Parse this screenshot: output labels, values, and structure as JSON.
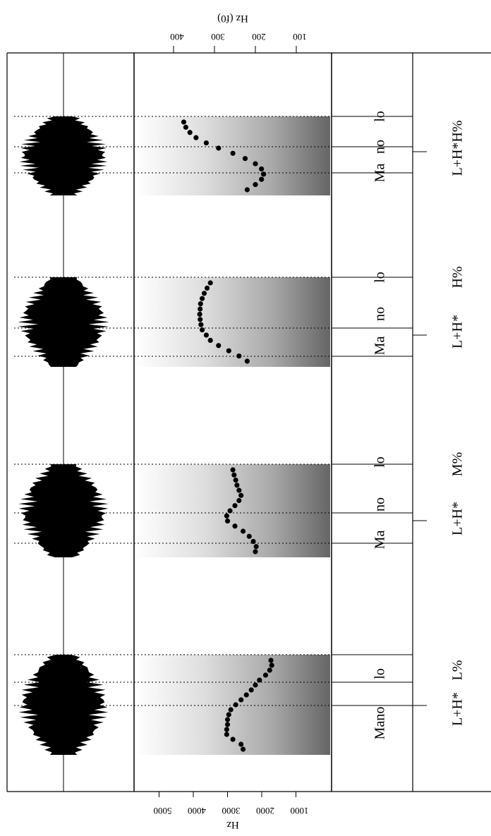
{
  "figure": {
    "f0_axis": {
      "label": "Hz (f0)",
      "ticks": [
        "100",
        "200",
        "300",
        "400"
      ]
    },
    "spectrogram_axis": {
      "label": "Hz",
      "ticks": [
        "1000",
        "2000",
        "3000",
        "4000",
        "5000"
      ]
    },
    "panels": [
      {
        "words": [
          "Mano",
          "lo"
        ],
        "tones": [
          "L+H*",
          "L%"
        ],
        "f0_contour_hz": [
          230,
          235,
          255,
          270,
          270,
          268,
          268,
          265,
          260,
          248,
          235,
          222,
          210,
          200,
          190,
          175,
          165,
          160,
          162
        ],
        "f0_contour_kind": "dip then fall"
      },
      {
        "words": [
          "Ma",
          "no",
          "lo"
        ],
        "tones": [
          "L+H*",
          "M%"
        ],
        "f0_contour_hz": [
          200,
          198,
          205,
          215,
          230,
          250,
          268,
          270,
          262,
          250,
          240,
          235,
          240,
          245,
          248,
          252,
          255
        ],
        "f0_contour_kind": "dip then level"
      },
      {
        "words": [
          "Ma",
          "no",
          "lo"
        ],
        "tones": [
          "L+H*",
          "H%"
        ],
        "f0_contour_hz": [
          220,
          240,
          265,
          290,
          310,
          320,
          330,
          333,
          335,
          336,
          335,
          334,
          330,
          325,
          318,
          310
        ],
        "f0_contour_kind": "rise then plateau"
      },
      {
        "words": [
          "Ma",
          "no",
          "lo"
        ],
        "tones": [
          "L+H*",
          "H%"
        ],
        "tone_label_text": "L+H*H%",
        "f0_contour_hz": [
          220,
          200,
          185,
          180,
          185,
          200,
          225,
          255,
          290,
          320,
          345,
          360,
          370,
          375
        ],
        "f0_contour_kind": "fall then rise"
      }
    ]
  }
}
